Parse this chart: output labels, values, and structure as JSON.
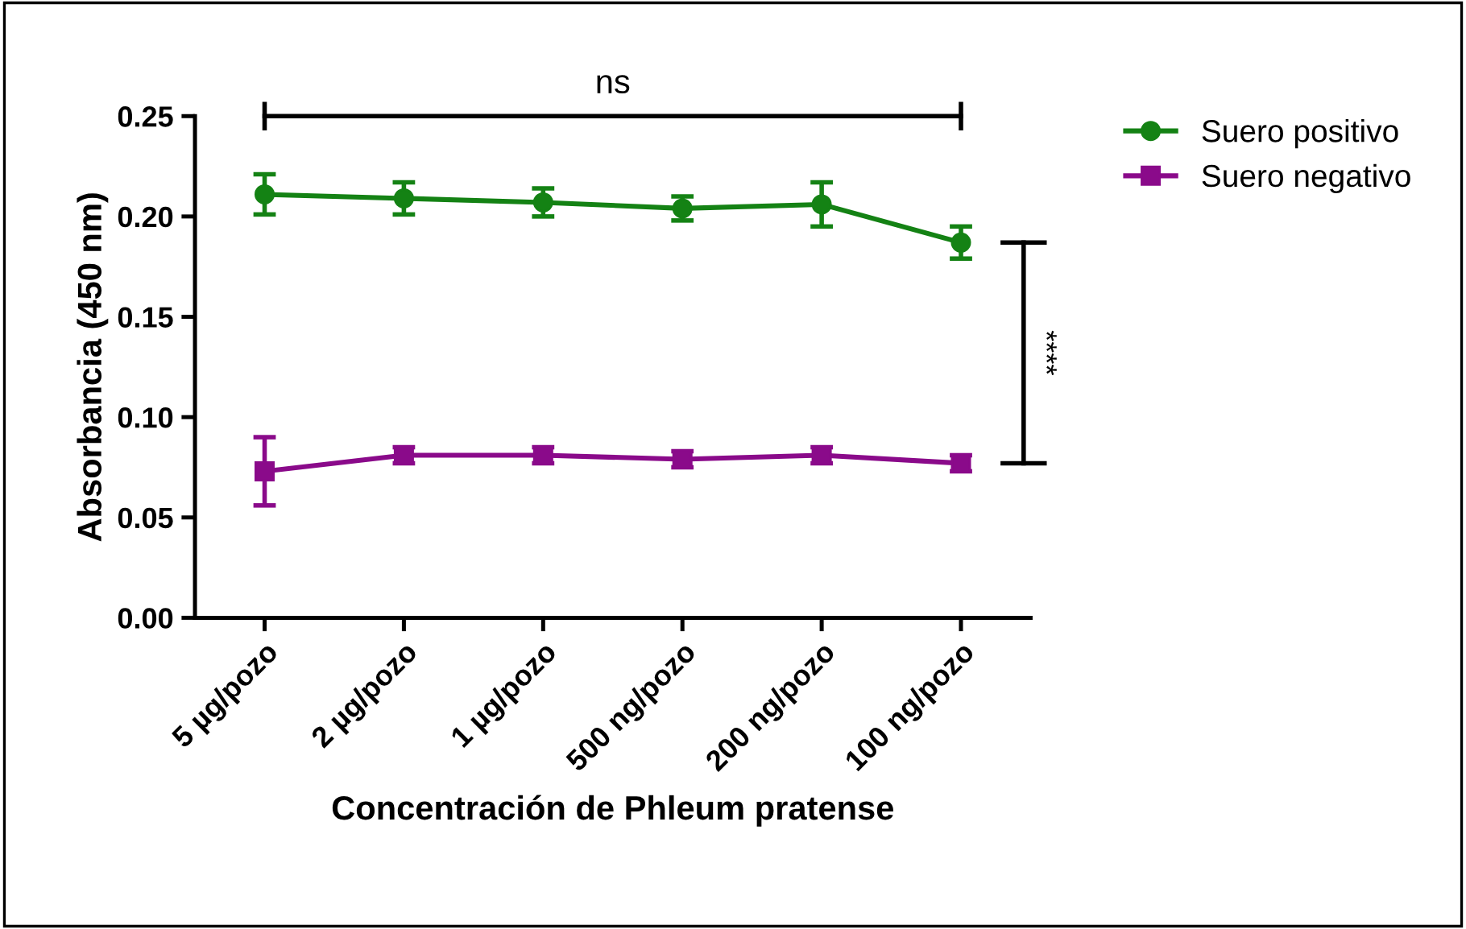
{
  "chart_data": {
    "type": "line",
    "categories": [
      "5 µg/pozo",
      "2 µg/pozo",
      "1 µg/pozo",
      "500 ng/pozo",
      "200 ng/pozo",
      "100 ng/pozo"
    ],
    "xlabel": "Concentración de Phleum pratense",
    "ylabel": "Absorbancia (450 nm)",
    "ylim": [
      0,
      0.25
    ],
    "yticks": [
      {
        "value": 0,
        "label": "0.00"
      },
      {
        "value": 0.05,
        "label": "0.05"
      },
      {
        "value": 0.1,
        "label": "0.10"
      },
      {
        "value": 0.15,
        "label": "0.15"
      },
      {
        "value": 0.2,
        "label": "0.20"
      },
      {
        "value": 0.25,
        "label": "0.25"
      }
    ],
    "series": [
      {
        "name": "Suero positivo",
        "color": "#148214",
        "marker": "circle",
        "values": [
          0.211,
          0.209,
          0.207,
          0.204,
          0.206,
          0.187
        ],
        "errors": [
          0.01,
          0.008,
          0.007,
          0.006,
          0.011,
          0.008
        ]
      },
      {
        "name": "Suero negativo",
        "color": "#8a0a8a",
        "marker": "square",
        "values": [
          0.073,
          0.081,
          0.081,
          0.079,
          0.081,
          0.077
        ],
        "errors": [
          0.017,
          0.004,
          0.004,
          0.004,
          0.004,
          0.004
        ]
      }
    ],
    "annotations": [
      "ns",
      "****"
    ],
    "legend": "top right",
    "grid": false
  }
}
